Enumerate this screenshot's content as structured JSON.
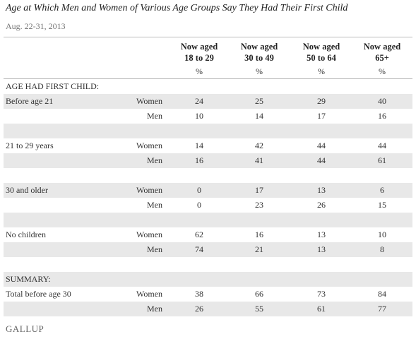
{
  "header": {
    "title": "Age at Which Men and Women of Various Age Groups Say They Had Their First Child",
    "subtitle": "Aug. 22-31, 2013"
  },
  "table": {
    "columns": [
      [
        "Now aged",
        "18 to 29"
      ],
      [
        "Now aged",
        "30 to 49"
      ],
      [
        "Now aged",
        "50 to 64"
      ],
      [
        "Now aged",
        "65+"
      ]
    ],
    "units": [
      "%",
      "%",
      "%",
      "%"
    ],
    "sections": [
      {
        "heading": "AGE HAD FIRST CHILD:",
        "groups": [
          {
            "label": "Before age 21",
            "rows": [
              {
                "gender": "Women",
                "values": [
                  24,
                  25,
                  29,
                  40
                ]
              },
              {
                "gender": "Men",
                "values": [
                  10,
                  14,
                  17,
                  16
                ]
              }
            ]
          },
          {
            "label": "21 to 29 years",
            "rows": [
              {
                "gender": "Women",
                "values": [
                  14,
                  42,
                  44,
                  44
                ]
              },
              {
                "gender": "Men",
                "values": [
                  16,
                  41,
                  44,
                  61
                ]
              }
            ]
          },
          {
            "label": "30 and older",
            "rows": [
              {
                "gender": "Women",
                "values": [
                  0,
                  17,
                  13,
                  6
                ]
              },
              {
                "gender": "Men",
                "values": [
                  0,
                  23,
                  26,
                  15
                ]
              }
            ]
          },
          {
            "label": "No children",
            "rows": [
              {
                "gender": "Women",
                "values": [
                  62,
                  16,
                  13,
                  10
                ]
              },
              {
                "gender": "Men",
                "values": [
                  74,
                  21,
                  13,
                  8
                ]
              }
            ]
          }
        ]
      },
      {
        "heading": "SUMMARY:",
        "groups": [
          {
            "label": "Total before age 30",
            "rows": [
              {
                "gender": "Women",
                "values": [
                  38,
                  66,
                  73,
                  84
                ]
              },
              {
                "gender": "Men",
                "values": [
                  26,
                  55,
                  61,
                  77
                ]
              }
            ]
          }
        ]
      }
    ]
  },
  "footer": "GALLUP"
}
